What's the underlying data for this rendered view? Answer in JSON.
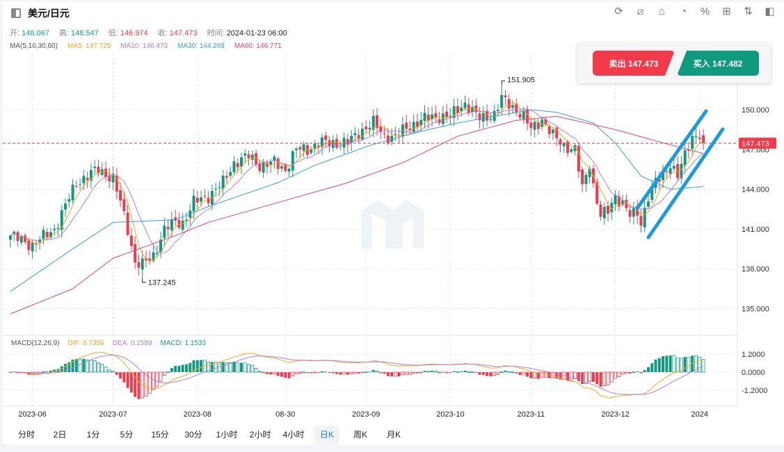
{
  "header": {
    "title": "美元/日元",
    "icons": [
      "refresh-icon",
      "drawing-icon",
      "indicator-icon",
      "pie-chart-icon",
      "percent-icon",
      "grid-icon",
      "sort-icon",
      "panel-toggle-icon"
    ]
  },
  "ohlc": {
    "open_label": "开:",
    "open": "148.067",
    "high_label": "高:",
    "high": "148.547",
    "low_label": "低:",
    "low": "146.974",
    "close_label": "收:",
    "close": "147.473",
    "time_label": "时间:",
    "time": "2024-01-23 06:00"
  },
  "ma": {
    "label": "MA(5,10,30,60)",
    "ma5": "MA5: 147.729",
    "ma10": "MA10: 146.473",
    "ma30": "MA30: 144.269",
    "ma60": "MA60: 146.771"
  },
  "macd": {
    "label": "MACD(12,26,9)",
    "dif": "DIF: 0.7356",
    "dea": "DEA: 0.1589",
    "macd": "MACD: 1.1533"
  },
  "trade": {
    "sell": "卖出 147.473",
    "buy": "买入 147.482"
  },
  "timeframes": [
    "分时",
    "2日",
    "1分",
    "5分",
    "15分",
    "30分",
    "1小时",
    "2小时",
    "4小时",
    "日K",
    "周K",
    "月K"
  ],
  "active_timeframe": "日K",
  "colors": {
    "up": "#0f9a7e",
    "down": "#f23a4b",
    "ma5": "#f5a623",
    "ma10": "#b07fd6",
    "ma30": "#3a9be8",
    "ma60": "#e8407a",
    "channel": "#1a9be0"
  },
  "chart_data": {
    "type": "candlestick",
    "candle_count": 190,
    "close_waypoints": [
      [
        0,
        140.5
      ],
      [
        6,
        139.8
      ],
      [
        12,
        141
      ],
      [
        18,
        144.5
      ],
      [
        24,
        145.5
      ],
      [
        28,
        144.8
      ],
      [
        30,
        143
      ],
      [
        32,
        141
      ],
      [
        34,
        138.5
      ],
      [
        36,
        138.3
      ],
      [
        39,
        139
      ],
      [
        42,
        141
      ],
      [
        45,
        141.5
      ],
      [
        47,
        141.5
      ],
      [
        50,
        143
      ],
      [
        54,
        143.5
      ],
      [
        58,
        144.5
      ],
      [
        61,
        146
      ],
      [
        65,
        146.5
      ],
      [
        68,
        145.8
      ],
      [
        72,
        146
      ],
      [
        75,
        145.5
      ],
      [
        78,
        147
      ],
      [
        81,
        147
      ],
      [
        84,
        147.5
      ],
      [
        88,
        147.5
      ],
      [
        92,
        147.5
      ],
      [
        96,
        148.5
      ],
      [
        99,
        149
      ],
      [
        102,
        148
      ],
      [
        105,
        148
      ],
      [
        109,
        148.8
      ],
      [
        113,
        149.3
      ],
      [
        117,
        149.5
      ],
      [
        120,
        149.5
      ],
      [
        124,
        150.5
      ],
      [
        128,
        149.3
      ],
      [
        132,
        149.7
      ],
      [
        134,
        150.8
      ],
      [
        138,
        150
      ],
      [
        140,
        149.5
      ],
      [
        142,
        148.5
      ],
      [
        145,
        149.3
      ],
      [
        148,
        148
      ],
      [
        151,
        147.3
      ],
      [
        154,
        147
      ],
      [
        156,
        144
      ],
      [
        158,
        146
      ],
      [
        159,
        144.3
      ],
      [
        161,
        142
      ],
      [
        163,
        142.3
      ],
      [
        165,
        143.5
      ],
      [
        167,
        143
      ],
      [
        169,
        142
      ],
      [
        171,
        142.2
      ],
      [
        172,
        141.5
      ],
      [
        174,
        143.5
      ],
      [
        176,
        144.5
      ],
      [
        178,
        145
      ],
      [
        180,
        146
      ],
      [
        182,
        145
      ],
      [
        184,
        146.5
      ],
      [
        186,
        148
      ],
      [
        188,
        148.2
      ],
      [
        189,
        147.473
      ]
    ],
    "last_candle": {
      "open": 148.067,
      "high": 148.547,
      "low": 146.974,
      "close": 147.473
    },
    "ma30_waypoints": [
      [
        0,
        136.3
      ],
      [
        17,
        139.5
      ],
      [
        28,
        141.5
      ],
      [
        45,
        141.7
      ],
      [
        54,
        142.7
      ],
      [
        73,
        144.5
      ],
      [
        83,
        145.8
      ],
      [
        98,
        147.3
      ],
      [
        111,
        148.3
      ],
      [
        122,
        149
      ],
      [
        142,
        150
      ],
      [
        149,
        149.8
      ],
      [
        159,
        149
      ],
      [
        165,
        147.5
      ],
      [
        172,
        145
      ],
      [
        180,
        144
      ],
      [
        189,
        144.2
      ]
    ],
    "ma60_waypoints": [
      [
        0,
        134.6
      ],
      [
        17,
        136.5
      ],
      [
        28,
        138.8
      ],
      [
        45,
        140.5
      ],
      [
        54,
        141.5
      ],
      [
        73,
        143
      ],
      [
        92,
        144.5
      ],
      [
        107,
        146
      ],
      [
        122,
        148
      ],
      [
        138,
        149.2
      ],
      [
        149,
        149.5
      ],
      [
        165,
        148.5
      ],
      [
        178,
        147.5
      ],
      [
        189,
        146.7
      ]
    ],
    "annotations": {
      "max": "151.905",
      "max_index": 134,
      "min": "137.245",
      "min_index": 36
    },
    "y_ticks": [
      "150.000",
      "147.000",
      "144.000",
      "141.000",
      "138.000",
      "135.000"
    ],
    "y_tick_values": [
      150,
      147,
      144,
      141,
      138,
      135
    ],
    "current_price": "147.473",
    "macd_ticks": [
      "1.2000",
      "0.0000",
      "-1.2000"
    ],
    "macd_tick_values": [
      1.2,
      0,
      -1.2
    ],
    "x_ticks": [
      {
        "i": 6,
        "label": "2023-06"
      },
      {
        "i": 28,
        "label": "2023-07"
      },
      {
        "i": 51,
        "label": "2023-08"
      },
      {
        "i": 75,
        "label": "08-30"
      },
      {
        "i": 97,
        "label": "2023-09"
      },
      {
        "i": 120,
        "label": "2023-10"
      },
      {
        "i": 142,
        "label": "2023-11"
      },
      {
        "i": 165,
        "label": "2023-12"
      },
      {
        "i": 188,
        "label": "2024"
      }
    ]
  }
}
